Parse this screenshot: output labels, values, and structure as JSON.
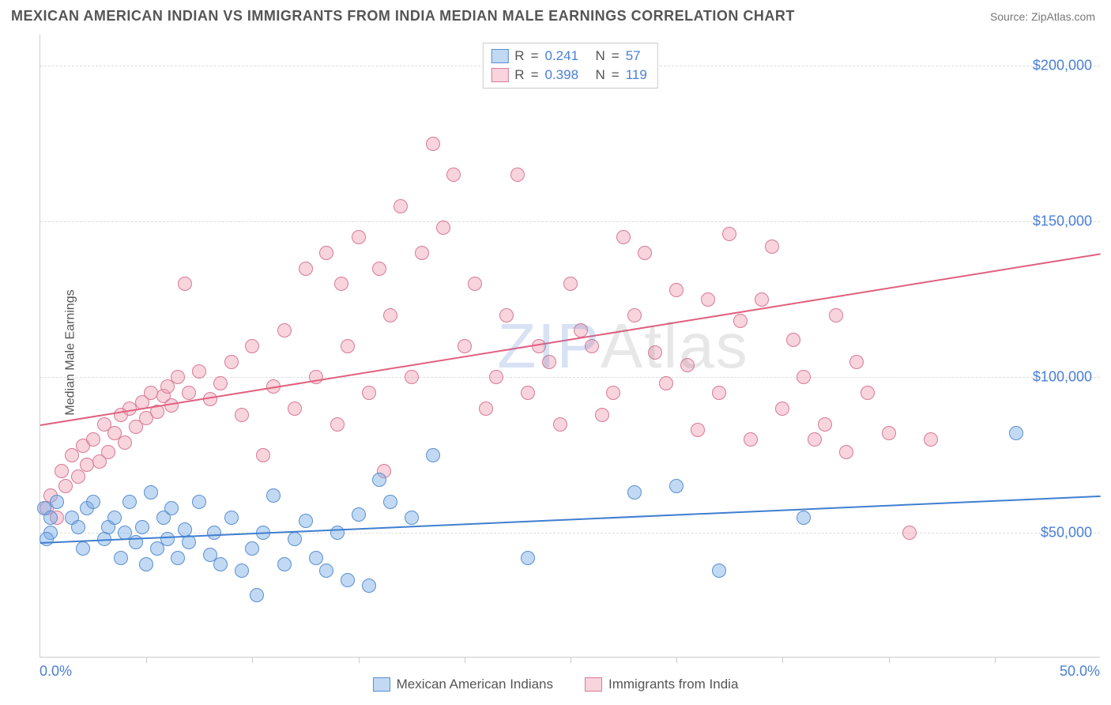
{
  "header": {
    "title": "MEXICAN AMERICAN INDIAN VS IMMIGRANTS FROM INDIA MEDIAN MALE EARNINGS CORRELATION CHART",
    "source": "Source: ZipAtlas.com"
  },
  "ylabel": "Median Male Earnings",
  "watermark_zip": "ZIP",
  "watermark_atlas": "Atlas",
  "chart": {
    "type": "scatter",
    "xlim": [
      0,
      50
    ],
    "ylim": [
      10000,
      210000
    ],
    "x_start_label": "0.0%",
    "x_end_label": "50.0%",
    "background_color": "#ffffff",
    "grid_color": "#dddddd",
    "yticks": [
      {
        "value": 50000,
        "label": "$50,000"
      },
      {
        "value": 100000,
        "label": "$100,000"
      },
      {
        "value": 150000,
        "label": "$150,000"
      },
      {
        "value": 200000,
        "label": "$200,000"
      }
    ],
    "xticks_pct": [
      5,
      10,
      15,
      20,
      25,
      30,
      35,
      40,
      45
    ],
    "series_a": {
      "label": "Mexican American Indians",
      "color_fill": "rgba(120,170,230,0.45)",
      "color_stroke": "#5a8fd0",
      "trend_color": "#3f7fd0",
      "marker_radius": 9,
      "R": "0.241",
      "N": "57",
      "trend": {
        "x0": 0,
        "y0": 47000,
        "x1": 50,
        "y1": 62000
      },
      "points": [
        [
          0.2,
          58000
        ],
        [
          0.5,
          55000
        ],
        [
          0.8,
          60000
        ],
        [
          0.5,
          50000
        ],
        [
          0.3,
          48000
        ],
        [
          1.5,
          55000
        ],
        [
          1.8,
          52000
        ],
        [
          2.0,
          45000
        ],
        [
          2.2,
          58000
        ],
        [
          2.5,
          60000
        ],
        [
          3.0,
          48000
        ],
        [
          3.2,
          52000
        ],
        [
          3.5,
          55000
        ],
        [
          3.8,
          42000
        ],
        [
          4.0,
          50000
        ],
        [
          4.2,
          60000
        ],
        [
          4.5,
          47000
        ],
        [
          4.8,
          52000
        ],
        [
          5.0,
          40000
        ],
        [
          5.2,
          63000
        ],
        [
          5.5,
          45000
        ],
        [
          5.8,
          55000
        ],
        [
          6.0,
          48000
        ],
        [
          6.2,
          58000
        ],
        [
          6.5,
          42000
        ],
        [
          6.8,
          51000
        ],
        [
          7.0,
          47000
        ],
        [
          7.5,
          60000
        ],
        [
          8.0,
          43000
        ],
        [
          8.2,
          50000
        ],
        [
          8.5,
          40000
        ],
        [
          9.0,
          55000
        ],
        [
          9.5,
          38000
        ],
        [
          10.0,
          45000
        ],
        [
          10.2,
          30000
        ],
        [
          10.5,
          50000
        ],
        [
          11.0,
          62000
        ],
        [
          11.5,
          40000
        ],
        [
          12.0,
          48000
        ],
        [
          12.5,
          54000
        ],
        [
          13.0,
          42000
        ],
        [
          13.5,
          38000
        ],
        [
          14.0,
          50000
        ],
        [
          14.5,
          35000
        ],
        [
          15.0,
          56000
        ],
        [
          15.5,
          33000
        ],
        [
          16.0,
          67000
        ],
        [
          16.5,
          60000
        ],
        [
          17.5,
          55000
        ],
        [
          18.5,
          75000
        ],
        [
          23.0,
          42000
        ],
        [
          28.0,
          63000
        ],
        [
          30.0,
          65000
        ],
        [
          32.0,
          38000
        ],
        [
          36.0,
          55000
        ],
        [
          46.0,
          82000
        ]
      ]
    },
    "series_b": {
      "label": "Immigrants from India",
      "color_fill": "rgba(240,160,180,0.45)",
      "color_stroke": "#d87a95",
      "trend_color": "#e0607f",
      "marker_radius": 9,
      "R": "0.398",
      "N": "119",
      "trend": {
        "x0": 0,
        "y0": 85000,
        "x1": 50,
        "y1": 140000
      },
      "points": [
        [
          0.3,
          58000
        ],
        [
          0.5,
          62000
        ],
        [
          0.8,
          55000
        ],
        [
          1.0,
          70000
        ],
        [
          1.2,
          65000
        ],
        [
          1.5,
          75000
        ],
        [
          1.8,
          68000
        ],
        [
          2.0,
          78000
        ],
        [
          2.2,
          72000
        ],
        [
          2.5,
          80000
        ],
        [
          2.8,
          73000
        ],
        [
          3.0,
          85000
        ],
        [
          3.2,
          76000
        ],
        [
          3.5,
          82000
        ],
        [
          3.8,
          88000
        ],
        [
          4.0,
          79000
        ],
        [
          4.2,
          90000
        ],
        [
          4.5,
          84000
        ],
        [
          4.8,
          92000
        ],
        [
          5.0,
          87000
        ],
        [
          5.2,
          95000
        ],
        [
          5.5,
          89000
        ],
        [
          5.8,
          94000
        ],
        [
          6.0,
          97000
        ],
        [
          6.2,
          91000
        ],
        [
          6.5,
          100000
        ],
        [
          6.8,
          130000
        ],
        [
          7.0,
          95000
        ],
        [
          7.5,
          102000
        ],
        [
          8.0,
          93000
        ],
        [
          8.5,
          98000
        ],
        [
          9.0,
          105000
        ],
        [
          9.5,
          88000
        ],
        [
          10.0,
          110000
        ],
        [
          10.5,
          75000
        ],
        [
          11.0,
          97000
        ],
        [
          11.5,
          115000
        ],
        [
          12.0,
          90000
        ],
        [
          12.5,
          135000
        ],
        [
          13.0,
          100000
        ],
        [
          13.5,
          140000
        ],
        [
          14.0,
          85000
        ],
        [
          14.2,
          130000
        ],
        [
          14.5,
          110000
        ],
        [
          15.0,
          145000
        ],
        [
          15.5,
          95000
        ],
        [
          16.0,
          135000
        ],
        [
          16.2,
          70000
        ],
        [
          16.5,
          120000
        ],
        [
          17.0,
          155000
        ],
        [
          17.5,
          100000
        ],
        [
          18.0,
          140000
        ],
        [
          18.5,
          175000
        ],
        [
          19.0,
          148000
        ],
        [
          19.5,
          165000
        ],
        [
          20.0,
          110000
        ],
        [
          20.5,
          130000
        ],
        [
          21.0,
          90000
        ],
        [
          21.5,
          100000
        ],
        [
          22.0,
          120000
        ],
        [
          22.5,
          165000
        ],
        [
          23.0,
          95000
        ],
        [
          23.5,
          110000
        ],
        [
          24.0,
          105000
        ],
        [
          24.5,
          85000
        ],
        [
          25.0,
          130000
        ],
        [
          25.5,
          115000
        ],
        [
          26.0,
          110000
        ],
        [
          26.5,
          88000
        ],
        [
          27.0,
          95000
        ],
        [
          27.5,
          145000
        ],
        [
          28.0,
          120000
        ],
        [
          28.5,
          140000
        ],
        [
          29.0,
          108000
        ],
        [
          29.5,
          98000
        ],
        [
          30.0,
          128000
        ],
        [
          30.5,
          104000
        ],
        [
          31.0,
          83000
        ],
        [
          31.5,
          125000
        ],
        [
          32.0,
          95000
        ],
        [
          32.5,
          146000
        ],
        [
          33.0,
          118000
        ],
        [
          33.5,
          80000
        ],
        [
          34.0,
          125000
        ],
        [
          34.5,
          142000
        ],
        [
          35.0,
          90000
        ],
        [
          35.5,
          112000
        ],
        [
          36.0,
          100000
        ],
        [
          36.5,
          80000
        ],
        [
          37.0,
          85000
        ],
        [
          37.5,
          120000
        ],
        [
          38.0,
          76000
        ],
        [
          38.5,
          105000
        ],
        [
          39.0,
          95000
        ],
        [
          40.0,
          82000
        ],
        [
          41.0,
          50000
        ],
        [
          42.0,
          80000
        ]
      ]
    }
  },
  "legend": {
    "a": "Mexican American Indians",
    "b": "Immigrants from India"
  }
}
